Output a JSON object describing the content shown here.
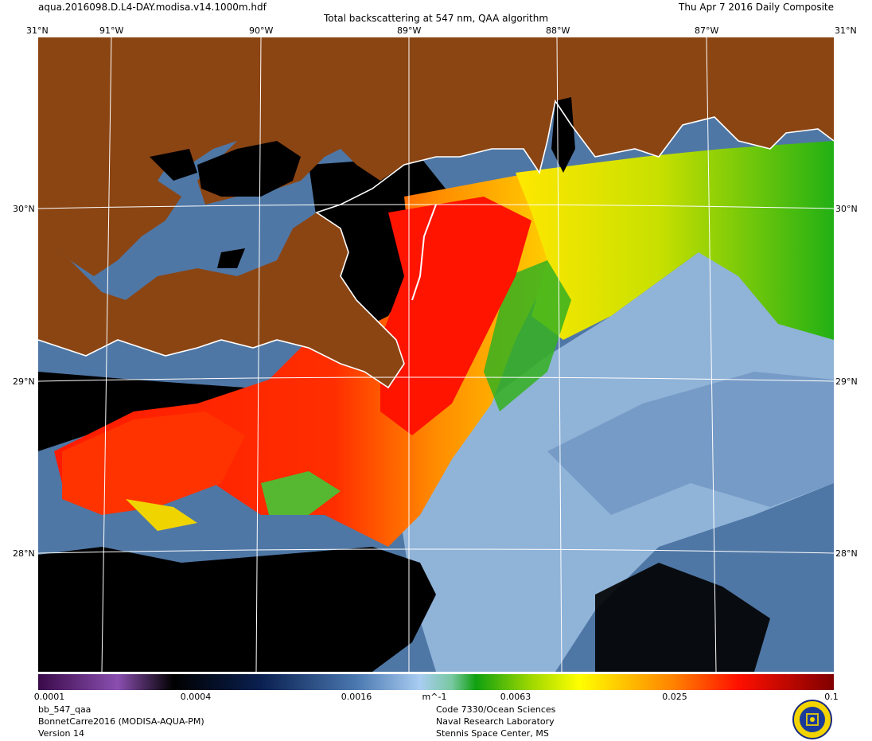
{
  "header": {
    "file_name": "aqua.2016098.D.L4-DAY.modisa.v14.1000m.hdf",
    "date_label": "Thu Apr  7 2016 Daily Composite",
    "title": "Total backscattering at 547 nm, QAA algorithm"
  },
  "map": {
    "lon_labels": [
      "91°W",
      "90°W",
      "89°W",
      "88°W",
      "87°W"
    ],
    "lat_labels": [
      "30°N",
      "29°N",
      "28°N"
    ],
    "corner_labels": {
      "top_left": "31°N",
      "top_right": "31°N"
    },
    "colors": {
      "land": "#8b4513",
      "nodata": "#000000",
      "coast": "#ffffff",
      "grid": "#ffffff"
    }
  },
  "colorbar": {
    "tick_labels": [
      "0.0001",
      "0.0004",
      "0.0016",
      "0.0063",
      "0.025",
      "0.1"
    ],
    "unit": "m^-1"
  },
  "footer": {
    "left": [
      "bb_547_qaa",
      "BonnetCarre2016 (MODISA-AQUA-PM)",
      "Version 14"
    ],
    "right": [
      "Code 7330/Ocean Sciences",
      "Naval Research Laboratory",
      "Stennis Space Center, MS"
    ]
  }
}
